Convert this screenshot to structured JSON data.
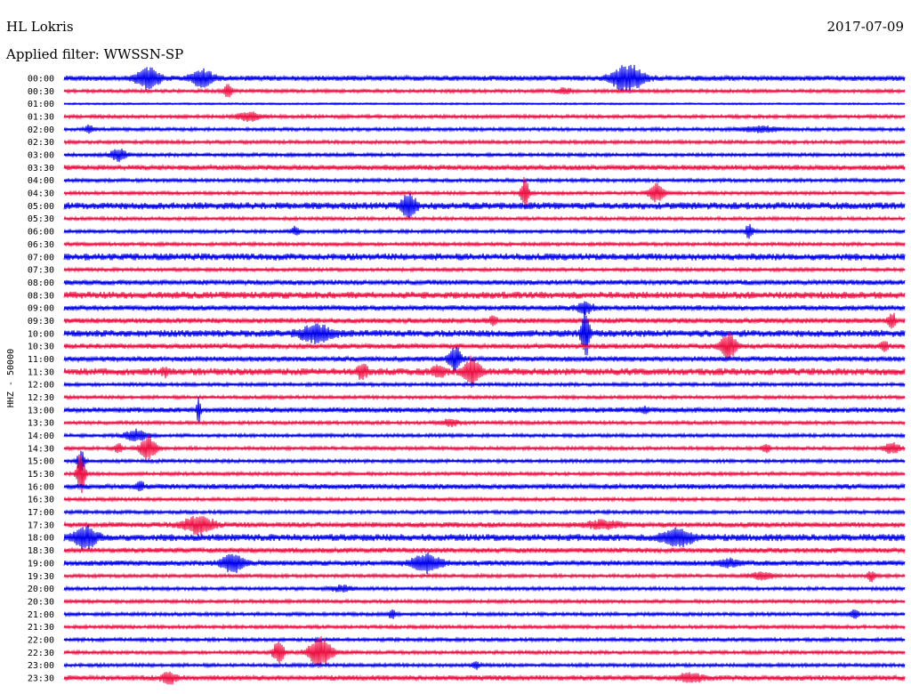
{
  "header": {
    "station": "HL Lokris",
    "date": "2017-07-09",
    "filter": "Applied filter: WWSSN-SP"
  },
  "y_axis_label": "HHZ - 50000",
  "colors": {
    "blue": "#0000ee",
    "red": "#ee1144"
  },
  "chart_data": {
    "type": "line",
    "title": "",
    "ylabel": "HHZ - 50000",
    "tick_labels": [
      "00:00",
      "00:30",
      "01:00",
      "01:30",
      "02:00",
      "02:30",
      "03:00",
      "03:30",
      "04:00",
      "04:30",
      "05:00",
      "05:30",
      "06:00",
      "06:30",
      "07:00",
      "07:30",
      "08:00",
      "08:30",
      "09:00",
      "09:30",
      "10:00",
      "10:30",
      "11:00",
      "11:30",
      "12:00",
      "12:30",
      "13:00",
      "13:30",
      "14:00",
      "14:30",
      "15:00",
      "15:30",
      "16:00",
      "16:30",
      "17:00",
      "17:30",
      "18:00",
      "18:30",
      "19:00",
      "19:30",
      "20:00",
      "20:30",
      "21:00",
      "21:30",
      "22:00",
      "22:30",
      "23:00",
      "23:30"
    ],
    "line_colors": [
      "blue",
      "red"
    ],
    "noise": [
      3,
      2,
      1,
      2,
      2,
      2,
      2,
      3,
      2,
      2,
      4,
      2,
      2,
      2,
      4,
      2,
      3,
      4,
      3,
      3,
      4,
      3,
      3,
      4,
      2,
      2,
      3,
      2,
      2,
      2,
      2,
      2,
      3,
      2,
      2,
      3,
      4,
      3,
      3,
      2,
      2,
      2,
      2,
      2,
      2,
      2,
      2,
      3
    ],
    "events": [
      {
        "row": 0,
        "x": 0.1,
        "amp": 12,
        "dur": 0.03
      },
      {
        "row": 0,
        "x": 0.165,
        "amp": 9,
        "dur": 0.03
      },
      {
        "row": 0,
        "x": 0.67,
        "amp": 16,
        "dur": 0.04
      },
      {
        "row": 1,
        "x": 0.195,
        "amp": 9,
        "dur": 0.01
      },
      {
        "row": 1,
        "x": 0.595,
        "amp": 3,
        "dur": 0.02
      },
      {
        "row": 3,
        "x": 0.22,
        "amp": 5,
        "dur": 0.03
      },
      {
        "row": 4,
        "x": 0.03,
        "amp": 5,
        "dur": 0.01
      },
      {
        "row": 4,
        "x": 0.83,
        "amp": 3,
        "dur": 0.05
      },
      {
        "row": 6,
        "x": 0.065,
        "amp": 7,
        "dur": 0.02
      },
      {
        "row": 9,
        "x": 0.548,
        "amp": 18,
        "dur": 0.01
      },
      {
        "row": 9,
        "x": 0.705,
        "amp": 10,
        "dur": 0.02
      },
      {
        "row": 10,
        "x": 0.41,
        "amp": 12,
        "dur": 0.02
      },
      {
        "row": 12,
        "x": 0.275,
        "amp": 5,
        "dur": 0.01
      },
      {
        "row": 12,
        "x": 0.815,
        "amp": 8,
        "dur": 0.01
      },
      {
        "row": 18,
        "x": 0.62,
        "amp": 6,
        "dur": 0.02
      },
      {
        "row": 19,
        "x": 0.51,
        "amp": 5,
        "dur": 0.01
      },
      {
        "row": 19,
        "x": 0.985,
        "amp": 8,
        "dur": 0.01
      },
      {
        "row": 20,
        "x": 0.3,
        "amp": 10,
        "dur": 0.04
      },
      {
        "row": 20,
        "x": 0.62,
        "amp": 30,
        "dur": 0.01
      },
      {
        "row": 21,
        "x": 0.79,
        "amp": 15,
        "dur": 0.02
      },
      {
        "row": 21,
        "x": 0.975,
        "amp": 6,
        "dur": 0.01
      },
      {
        "row": 22,
        "x": 0.465,
        "amp": 15,
        "dur": 0.015
      },
      {
        "row": 23,
        "x": 0.355,
        "amp": 7,
        "dur": 0.015
      },
      {
        "row": 23,
        "x": 0.485,
        "amp": 16,
        "dur": 0.02
      },
      {
        "row": 23,
        "x": 0.445,
        "amp": 5,
        "dur": 0.02
      },
      {
        "row": 23,
        "x": 0.12,
        "amp": 4,
        "dur": 0.01
      },
      {
        "row": 26,
        "x": 0.16,
        "amp": 14,
        "dur": 0.005
      },
      {
        "row": 26,
        "x": 0.69,
        "amp": 3,
        "dur": 0.01
      },
      {
        "row": 27,
        "x": 0.46,
        "amp": 4,
        "dur": 0.02
      },
      {
        "row": 28,
        "x": 0.085,
        "amp": 6,
        "dur": 0.03
      },
      {
        "row": 29,
        "x": 0.1,
        "amp": 14,
        "dur": 0.02
      },
      {
        "row": 29,
        "x": 0.065,
        "amp": 5,
        "dur": 0.01
      },
      {
        "row": 29,
        "x": 0.835,
        "amp": 5,
        "dur": 0.01
      },
      {
        "row": 29,
        "x": 0.985,
        "amp": 6,
        "dur": 0.02
      },
      {
        "row": 30,
        "x": 0.02,
        "amp": 12,
        "dur": 0.01
      },
      {
        "row": 31,
        "x": 0.02,
        "amp": 28,
        "dur": 0.01
      },
      {
        "row": 32,
        "x": 0.09,
        "amp": 6,
        "dur": 0.01
      },
      {
        "row": 35,
        "x": 0.16,
        "amp": 10,
        "dur": 0.04
      },
      {
        "row": 35,
        "x": 0.64,
        "amp": 4,
        "dur": 0.05
      },
      {
        "row": 36,
        "x": 0.025,
        "amp": 12,
        "dur": 0.03
      },
      {
        "row": 36,
        "x": 0.73,
        "amp": 9,
        "dur": 0.04
      },
      {
        "row": 38,
        "x": 0.2,
        "amp": 10,
        "dur": 0.03
      },
      {
        "row": 38,
        "x": 0.43,
        "amp": 10,
        "dur": 0.04
      },
      {
        "row": 38,
        "x": 0.79,
        "amp": 4,
        "dur": 0.03
      },
      {
        "row": 39,
        "x": 0.83,
        "amp": 4,
        "dur": 0.03
      },
      {
        "row": 39,
        "x": 0.96,
        "amp": 6,
        "dur": 0.01
      },
      {
        "row": 40,
        "x": 0.33,
        "amp": 3,
        "dur": 0.03
      },
      {
        "row": 42,
        "x": 0.39,
        "amp": 5,
        "dur": 0.01
      },
      {
        "row": 42,
        "x": 0.94,
        "amp": 6,
        "dur": 0.01
      },
      {
        "row": 45,
        "x": 0.255,
        "amp": 12,
        "dur": 0.015
      },
      {
        "row": 45,
        "x": 0.305,
        "amp": 18,
        "dur": 0.03
      },
      {
        "row": 46,
        "x": 0.49,
        "amp": 4,
        "dur": 0.01
      },
      {
        "row": 47,
        "x": 0.125,
        "amp": 6,
        "dur": 0.02
      },
      {
        "row": 47,
        "x": 0.745,
        "amp": 5,
        "dur": 0.03
      }
    ]
  }
}
